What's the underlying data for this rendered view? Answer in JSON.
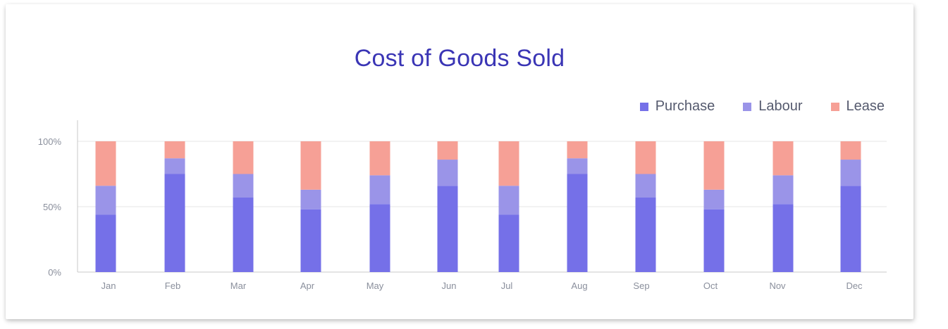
{
  "colors": {
    "purchase": "#7570e8",
    "labour": "#9a94e8",
    "lease": "#f6a096",
    "grid": "#e6e6e6",
    "axis": "#c8c8c8",
    "title": "#3a35b5"
  },
  "chart_data": {
    "type": "bar",
    "stacked": true,
    "title": "Cost of Goods Sold",
    "xlabel": "",
    "ylabel": "",
    "ylim": [
      0,
      100
    ],
    "y_ticks": [
      "0%",
      "50%",
      "100%"
    ],
    "grid": true,
    "legend_position": "top-right",
    "categories": [
      "Jan",
      "Feb",
      "Mar",
      "Apr",
      "May",
      "Jun",
      "Jul",
      "Aug",
      "Sep",
      "Oct",
      "Nov",
      "Dec"
    ],
    "series": [
      {
        "name": "Purchase",
        "color": "#7570e8",
        "values": [
          44,
          75,
          57,
          48,
          52,
          66,
          44,
          75,
          57,
          48,
          52,
          66
        ]
      },
      {
        "name": "Labour",
        "color": "#9a94e8",
        "values": [
          22,
          12,
          18,
          15,
          22,
          20,
          22,
          12,
          18,
          15,
          22,
          20
        ]
      },
      {
        "name": "Lease",
        "color": "#f6a096",
        "values": [
          34,
          13,
          25,
          37,
          26,
          14,
          34,
          13,
          25,
          37,
          26,
          14
        ]
      }
    ]
  }
}
